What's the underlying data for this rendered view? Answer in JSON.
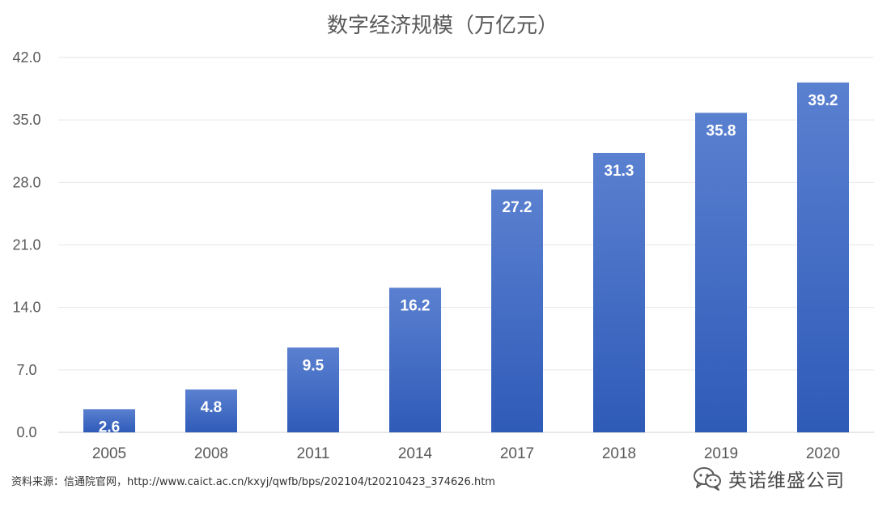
{
  "chart_data": {
    "type": "bar",
    "title": "数字经济规模（万亿元）",
    "categories": [
      "2005",
      "2008",
      "2011",
      "2014",
      "2017",
      "2018",
      "2019",
      "2020"
    ],
    "values": [
      2.6,
      4.8,
      9.5,
      16.2,
      27.2,
      31.3,
      35.8,
      39.2
    ],
    "value_labels": [
      "2.6",
      "4.8",
      "9.5",
      "16.2",
      "27.2",
      "31.3",
      "35.8",
      "39.2"
    ],
    "yticks": [
      "0.0",
      "7.0",
      "14.0",
      "21.0",
      "28.0",
      "35.0",
      "42.0"
    ],
    "ylim": [
      0,
      42
    ],
    "xlabel": "",
    "ylabel": "",
    "grid": true,
    "legend": "none",
    "colors": {
      "bar_top": "#5a80d0",
      "bar_bottom": "#2f5bb8",
      "grid": "#e6e6e6",
      "axis_text": "#595959"
    }
  },
  "footer": {
    "source": "资料来源：信通院官网，http://www.caict.ac.cn/kxyj/qwfb/bps/202104/t20210423_374626.htm",
    "watermark": "英诺维盛公司",
    "watermark_icon": "wechat-icon"
  }
}
